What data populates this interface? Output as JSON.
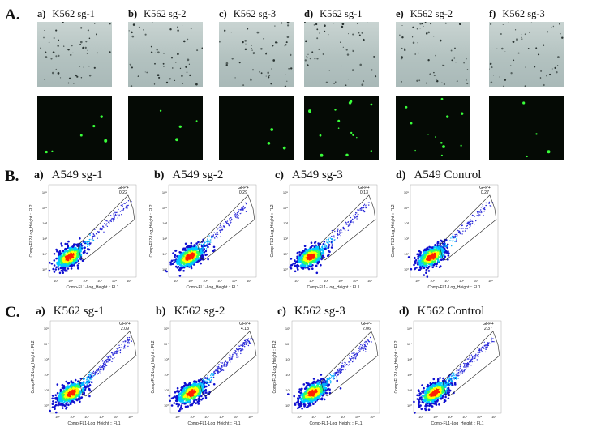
{
  "section_a": {
    "label": "A.",
    "panels": [
      {
        "letter": "a)",
        "title": "K562 sg-1"
      },
      {
        "letter": "b)",
        "title": "K562 sg-2"
      },
      {
        "letter": "c)",
        "title": "K562 sg-3"
      },
      {
        "letter": "d)",
        "title": "K562 sg-1"
      },
      {
        "letter": "e)",
        "title": "K562 sg-2"
      },
      {
        "letter": "f)",
        "title": "K562 sg-3"
      }
    ]
  },
  "section_b": {
    "label": "B.",
    "panels": [
      {
        "letter": "a)",
        "title": "A549 sg-1",
        "gate": "GFP+",
        "value": "0.22"
      },
      {
        "letter": "b)",
        "title": "A549 sg-2",
        "gate": "GFP+",
        "value": "0.29"
      },
      {
        "letter": "c)",
        "title": "A549 sg-3",
        "gate": "GFP+",
        "value": "0.13"
      },
      {
        "letter": "d)",
        "title": "A549 Control",
        "gate": "GFP+",
        "value": "0.27"
      }
    ]
  },
  "section_c": {
    "label": "C.",
    "panels": [
      {
        "letter": "a)",
        "title": "K562 sg-1",
        "gate": "GFP+",
        "value": "2.09"
      },
      {
        "letter": "b)",
        "title": "K562 sg-2",
        "gate": "GFP+",
        "value": "4.13"
      },
      {
        "letter": "c)",
        "title": "K562 sg-3",
        "gate": "GFP+",
        "value": "2.06"
      },
      {
        "letter": "d)",
        "title": "K562 Control",
        "gate": "GFP+",
        "value": "2.37"
      }
    ]
  },
  "axes": {
    "xlabel": "Comp-FL1-Log_Height :: FL1",
    "ylabel": "Comp-FL2-Log_Height :: FL2",
    "ticks": [
      "10⁰",
      "10¹",
      "10²",
      "10³",
      "10⁴",
      "10⁵"
    ]
  },
  "colors": {
    "bright_field": "#b8c6c4",
    "fluorescence_bg": "#050a05",
    "gfp_dot": "#39ff3a",
    "density_scale": [
      "#1010d0",
      "#00c8ff",
      "#30ff60",
      "#ffff00",
      "#ff2000"
    ]
  }
}
